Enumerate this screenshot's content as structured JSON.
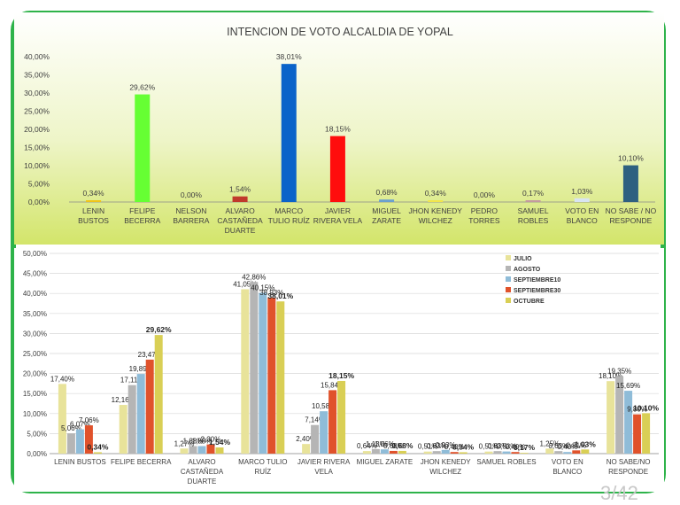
{
  "chart_data": [
    {
      "type": "bar",
      "title": "INTENCION DE VOTO ALCALDIA DE YOPAL",
      "categories": [
        [
          "LENIN",
          "BUSTOS"
        ],
        [
          "FELIPE",
          "BECERRA"
        ],
        [
          "NELSON",
          "BARRERA"
        ],
        [
          "ALVARO",
          "CASTAÑEDA",
          "DUARTE"
        ],
        [
          "MARCO",
          "TULIO RUÍZ"
        ],
        [
          "JAVIER",
          "RIVERA VELA"
        ],
        [
          "MIGUEL",
          "ZARATE"
        ],
        [
          "JHON KENEDY",
          "WILCHEZ"
        ],
        [
          "PEDRO",
          "TORRES"
        ],
        [
          "SAMUEL",
          "ROBLES"
        ],
        [
          "VOTO EN",
          "BLANCO"
        ],
        [
          "NO SABE / NO",
          "RESPONDE"
        ]
      ],
      "values": [
        0.34,
        29.62,
        0.0,
        1.54,
        38.01,
        18.15,
        0.68,
        0.34,
        0.0,
        0.17,
        1.03,
        10.1
      ],
      "data_labels": [
        "0,34%",
        "29,62%",
        "0,00%",
        "1,54%",
        "38,01%",
        "18,15%",
        "0,68%",
        "0,34%",
        "0,00%",
        "0,17%",
        "1,03%",
        "10,10%"
      ],
      "colors": [
        "#f0c419",
        "#66ff33",
        "#a0a0a0",
        "#c0392b",
        "#0a63c9",
        "#ff0d0d",
        "#6aa0cf",
        "#f2e54a",
        "#9a9a9a",
        "#c49aa0",
        "#d8e4f2",
        "#2e6080"
      ],
      "ylim": [
        0,
        40
      ],
      "yticks": [
        "0,00%",
        "5,00%",
        "10,00%",
        "15,00%",
        "20,00%",
        "25,00%",
        "30,00%",
        "35,00%",
        "40,00%"
      ],
      "grid": false
    },
    {
      "type": "bar",
      "categories": [
        [
          "LENIN BUSTOS"
        ],
        [
          "FELIPE BECERRA"
        ],
        [
          "ALVARO",
          "CASTAÑEDA",
          "DUARTE"
        ],
        [
          "MARCO TULIO",
          "RUÍZ"
        ],
        [
          "JAVIER RIVERA",
          "VELA"
        ],
        [
          "MIGUEL ZARATE"
        ],
        [
          "JHON KENEDY",
          "WILCHEZ"
        ],
        [
          "SAMUEL ROBLES"
        ],
        [
          "VOTO EN",
          "BLANCO"
        ],
        [
          "NO SABE/NO",
          "RESPONDE"
        ]
      ],
      "series": [
        {
          "name": "JULIO",
          "color": "#e8e39a",
          "values": [
            17.4,
            12.16,
            1.27,
            41.05,
            2.4,
            0.64,
            0.51,
            0.51,
            1.25,
            18.1
          ],
          "labels": [
            "17,40%",
            "12,16%",
            "1,27%",
            "41,05%",
            "2,40%",
            "0,64%",
            "0,51%",
            "0,51%",
            "1,25%",
            "18,10%"
          ]
        },
        {
          "name": "AGOSTO",
          "color": "#b5b5b5",
          "values": [
            5.06,
            17.11,
            1.88,
            42.86,
            7.14,
            1.13,
            0.63,
            0.63,
            0.63,
            19.35
          ],
          "labels": [
            "5,06%",
            "17,11%",
            "1,88%",
            "42,86%",
            "7,14%",
            "1,13%",
            "0,63%",
            "0,63%",
            "0,63%",
            "19,35%"
          ]
        },
        {
          "name": "SEPTIEMBRE10",
          "color": "#8fbcd8",
          "values": [
            6.07,
            19.89,
            1.88,
            40.15,
            10.58,
            1.06,
            0.93,
            0.53,
            0.4,
            15.69
          ],
          "labels": [
            "6,07%",
            "19,89%",
            "1,88%",
            "40,15%",
            "10,58%",
            "1,06%",
            "0,93%",
            "0,53%",
            "0,40%",
            "15,69%"
          ]
        },
        {
          "name": "SEPTIEMBRE30",
          "color": "#e0522b",
          "values": [
            7.06,
            23.47,
            2.3,
            38.93,
            15.84,
            0.68,
            0.4,
            0.4,
            0.81,
            9.8
          ],
          "labels": [
            "7,06%",
            "23,47%",
            "2,30%",
            "38,93%",
            "15,84%",
            "0,68%",
            "0,40%",
            "0,40%",
            "0,81%",
            "9,80%"
          ]
        },
        {
          "name": "OCTUBRE",
          "color": "#d9cf55",
          "values": [
            0.34,
            29.62,
            1.54,
            38.01,
            18.15,
            0.68,
            0.34,
            0.17,
            1.03,
            10.1
          ],
          "labels": [
            "0,34%",
            "29,62%",
            "1,54%",
            "38,01%",
            "18,15%",
            "0,68%",
            "0,34%",
            "0,17%",
            "1,03%",
            "10,10%"
          ]
        }
      ],
      "ylim": [
        0,
        50
      ],
      "yticks": [
        "0,00%",
        "5,00%",
        "10,00%",
        "15,00%",
        "20,00%",
        "25,00%",
        "30,00%",
        "35,00%",
        "40,00%",
        "45,00%",
        "50,00%"
      ],
      "legend_position": "top-right",
      "grid": true
    }
  ],
  "page_number": "3/42"
}
